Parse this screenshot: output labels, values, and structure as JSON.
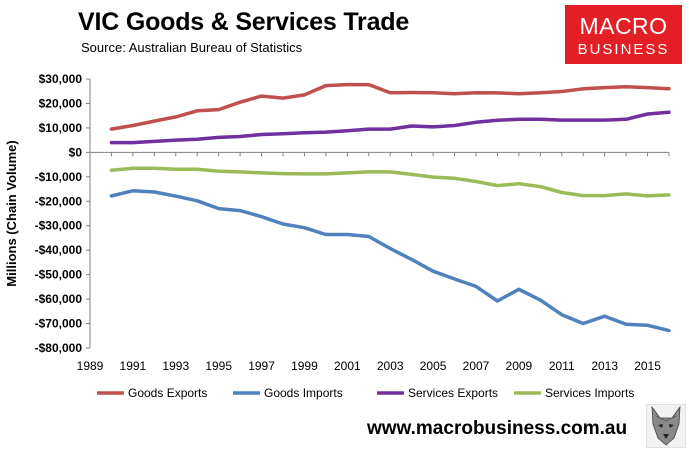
{
  "header": {
    "title": "VIC Goods & Services Trade",
    "source": "Source:  Australian Bureau of Statistics"
  },
  "logo": {
    "line1": "MACRO",
    "line2": "BUSINESS"
  },
  "footer": {
    "url": "www.macrobusiness.com.au",
    "mascot_icon": "wolf-icon"
  },
  "colors": {
    "goods_exports": "#c0504d",
    "goods_imports": "#4f81bd",
    "services_exports": "#7030a0",
    "services_imports": "#9bbb59",
    "brand": "#e31e24"
  },
  "chart_data": {
    "type": "line",
    "title": "VIC Goods & Services Trade",
    "xlabel": "",
    "ylabel": "Millions (Chain Volume)",
    "ylim": [
      -80000,
      30000
    ],
    "xlim": [
      1989,
      2016
    ],
    "yticks": [
      30000,
      20000,
      10000,
      0,
      -10000,
      -20000,
      -30000,
      -40000,
      -50000,
      -60000,
      -70000,
      -80000
    ],
    "ytick_labels": [
      "$30,000",
      "$20,000",
      "$10,000",
      "$0",
      "-$10,000",
      "-$20,000",
      "-$30,000",
      "-$40,000",
      "-$50,000",
      "-$60,000",
      "-$70,000",
      "-$80,000"
    ],
    "xticks": [
      1989,
      1991,
      1993,
      1995,
      1997,
      1999,
      2001,
      2003,
      2005,
      2007,
      2009,
      2011,
      2013,
      2015
    ],
    "xtick_labels": [
      "1989",
      "1991",
      "1993",
      "1995",
      "1997",
      "1999",
      "2001",
      "2003",
      "2005",
      "2007",
      "2009",
      "2011",
      "2013",
      "2015"
    ],
    "grid": false,
    "legend": "bottom",
    "x": [
      1990,
      1991,
      1992,
      1993,
      1994,
      1995,
      1996,
      1997,
      1998,
      1999,
      2000,
      2001,
      2002,
      2003,
      2004,
      2005,
      2006,
      2007,
      2008,
      2009,
      2010,
      2011,
      2012,
      2013,
      2014,
      2015,
      2016
    ],
    "series": [
      {
        "name": "Goods Exports",
        "color": "#c0504d",
        "values": [
          9500,
          11000,
          12800,
          14500,
          17000,
          17500,
          20500,
          23000,
          22200,
          23500,
          27300,
          27700,
          27700,
          24400,
          24500,
          24400,
          24000,
          24400,
          24300,
          24000,
          24400,
          24900,
          26000,
          26500,
          26800,
          26500,
          26000
        ]
      },
      {
        "name": "Goods Imports",
        "color": "#4f81bd",
        "values": [
          -17800,
          -15700,
          -16200,
          -17900,
          -19800,
          -23000,
          -23800,
          -26300,
          -29300,
          -30800,
          -33600,
          -33600,
          -34400,
          -39300,
          -43800,
          -48600,
          -51800,
          -54800,
          -60800,
          -56000,
          -60400,
          -66400,
          -70000,
          -67000,
          -70300,
          -70700,
          -72900
        ]
      },
      {
        "name": "Services Exports",
        "color": "#7030a0",
        "values": [
          4000,
          4000,
          4500,
          5000,
          5400,
          6100,
          6500,
          7300,
          7600,
          8000,
          8300,
          8800,
          9500,
          9500,
          10800,
          10400,
          11000,
          12300,
          13100,
          13500,
          13500,
          13200,
          13200,
          13200,
          13500,
          15700,
          16400
        ]
      },
      {
        "name": "Services Imports",
        "color": "#9bbb59",
        "values": [
          -7300,
          -6500,
          -6500,
          -6900,
          -6900,
          -7700,
          -8000,
          -8400,
          -8700,
          -8800,
          -8800,
          -8400,
          -8000,
          -8000,
          -9000,
          -10100,
          -10600,
          -11900,
          -13600,
          -12800,
          -14000,
          -16400,
          -17700,
          -17700,
          -17000,
          -17800,
          -17400
        ]
      }
    ]
  }
}
